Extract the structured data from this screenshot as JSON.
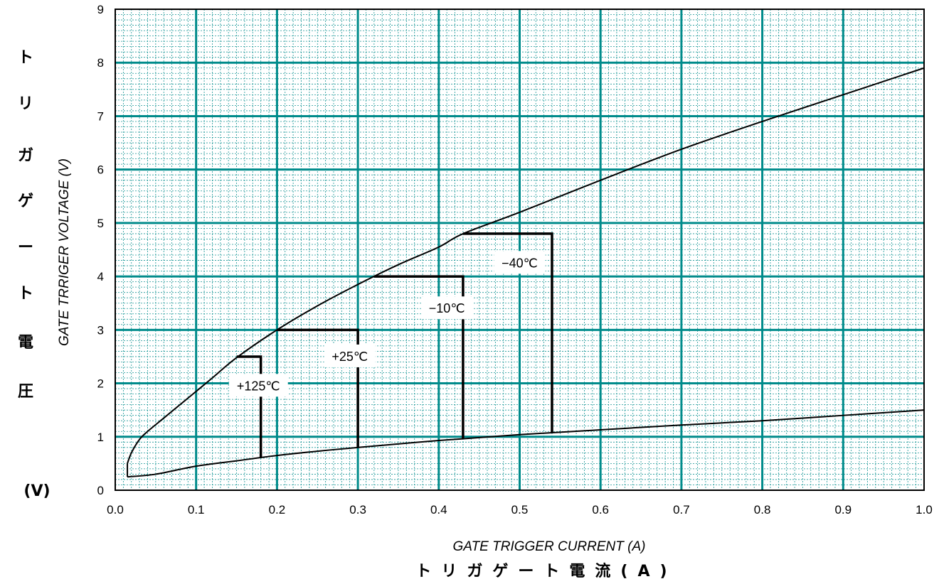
{
  "chart_data": {
    "type": "line",
    "xlabel": "GATE TRIGGER CURRENT (A)",
    "xlabel_jp": "トリガゲート電流(A)",
    "ylabel": "GATE TRRIGER VOLTAGE (V)",
    "ylabel_jp": "トリガゲート電圧",
    "ylabel_jp_unit": "(V)",
    "xlim": [
      0.0,
      1.0
    ],
    "ylim": [
      0,
      9
    ],
    "x_ticks": [
      "0.0",
      "0.1",
      "0.2",
      "0.3",
      "0.4",
      "0.5",
      "0.6",
      "0.7",
      "0.8",
      "0.9",
      "1.0"
    ],
    "y_ticks": [
      "0",
      "1",
      "2",
      "3",
      "4",
      "5",
      "6",
      "7",
      "8",
      "9"
    ],
    "grid": true,
    "series": [
      {
        "values_xy": [
          [
            0.015,
            0.5
          ],
          [
            0.02,
            0.7
          ],
          [
            0.03,
            0.95
          ],
          [
            0.04,
            1.1
          ],
          [
            0.06,
            1.35
          ],
          [
            0.08,
            1.6
          ],
          [
            0.1,
            1.85
          ],
          [
            0.12,
            2.1
          ],
          [
            0.15,
            2.48
          ],
          [
            0.2,
            3.0
          ],
          [
            0.25,
            3.45
          ],
          [
            0.3,
            3.85
          ],
          [
            0.35,
            4.22
          ],
          [
            0.4,
            4.55
          ],
          [
            0.43,
            4.8
          ],
          [
            0.5,
            5.2
          ],
          [
            0.6,
            5.8
          ],
          [
            0.7,
            6.38
          ],
          [
            0.8,
            6.9
          ],
          [
            0.9,
            7.4
          ],
          [
            1.0,
            7.9
          ]
        ]
      },
      {
        "values_xy": [
          [
            0.015,
            0.25
          ],
          [
            0.05,
            0.3
          ],
          [
            0.1,
            0.45
          ],
          [
            0.15,
            0.55
          ],
          [
            0.2,
            0.65
          ],
          [
            0.25,
            0.73
          ],
          [
            0.3,
            0.8
          ],
          [
            0.4,
            0.93
          ],
          [
            0.5,
            1.04
          ],
          [
            0.6,
            1.13
          ],
          [
            0.7,
            1.22
          ],
          [
            0.8,
            1.3
          ],
          [
            0.9,
            1.4
          ],
          [
            1.0,
            1.5
          ]
        ]
      }
    ],
    "closing_segment": [
      [
        0.015,
        0.25
      ],
      [
        0.015,
        0.5
      ]
    ],
    "temperature_regions": [
      {
        "label": "+125℃",
        "i_gt": 0.18,
        "v_gt": 2.5,
        "corner_x": 0.15,
        "label_xy": [
          0.177,
          1.95
        ]
      },
      {
        "label": "+25℃",
        "i_gt": 0.3,
        "v_gt": 3.0,
        "corner_x": 0.2,
        "label_xy": [
          0.29,
          2.5
        ]
      },
      {
        "label": "−10℃",
        "i_gt": 0.43,
        "v_gt": 4.0,
        "corner_x": 0.32,
        "label_xy": [
          0.41,
          3.4
        ]
      },
      {
        "label": "−40℃",
        "i_gt": 0.54,
        "v_gt": 4.8,
        "corner_x": 0.43,
        "label_xy": [
          0.5,
          4.25
        ]
      }
    ]
  }
}
